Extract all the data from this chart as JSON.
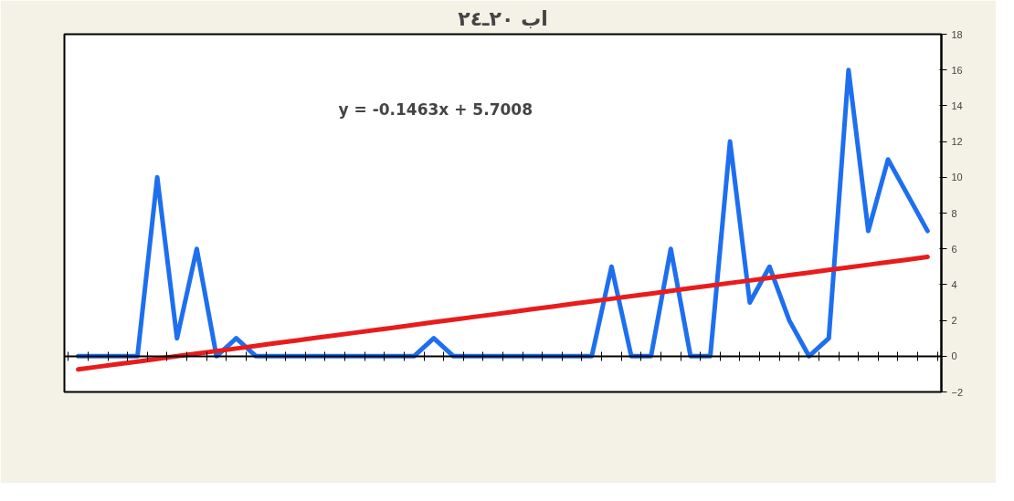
{
  "chart_data": {
    "type": "line",
    "title": "اب ٢٠ـ٢٤",
    "categories": [
      null,
      null,
      null,
      null,
      null,
      null,
      null,
      null,
      null,
      null,
      null,
      null,
      null,
      null,
      null,
      null,
      null,
      null,
      null,
      null,
      null,
      null,
      null,
      null,
      null,
      null,
      null,
      null,
      null,
      null,
      null,
      null,
      null,
      null,
      null,
      null,
      null,
      null,
      null,
      null,
      null,
      null,
      null,
      null
    ],
    "series": [
      {
        "color": "#1e6ff0",
        "values": [
          0,
          0,
          0,
          0,
          10,
          1,
          6,
          0,
          1,
          0,
          0,
          0,
          0,
          0,
          0,
          0,
          0,
          0,
          1,
          0,
          0,
          0,
          0,
          0,
          0,
          0,
          0,
          5,
          0,
          0,
          6,
          0,
          0,
          12,
          3,
          5,
          2,
          0,
          1,
          16,
          7,
          11,
          9,
          7
        ]
      },
      {
        "color": "#e81c1c",
        "values": [
          -0.74,
          -0.59,
          -0.44,
          -0.3,
          -0.15,
          -0.0,
          0.14,
          0.29,
          0.43,
          0.58,
          0.73,
          0.87,
          1.02,
          1.16,
          1.31,
          1.46,
          1.6,
          1.75,
          1.9,
          2.04,
          2.19,
          2.33,
          2.48,
          2.63,
          2.77,
          2.92,
          3.06,
          3.21,
          3.36,
          3.5,
          3.65,
          3.8,
          3.94,
          4.09,
          4.23,
          4.38,
          4.53,
          4.67,
          4.82,
          4.96,
          5.11,
          5.26,
          5.4,
          5.55
        ]
      }
    ],
    "ylim": [
      -2,
      18
    ],
    "yticks": [
      -2,
      0,
      2,
      4,
      6,
      8,
      10,
      12,
      14,
      16,
      18
    ],
    "annotations": [
      "y = -0.1463x + 5.7008"
    ]
  }
}
